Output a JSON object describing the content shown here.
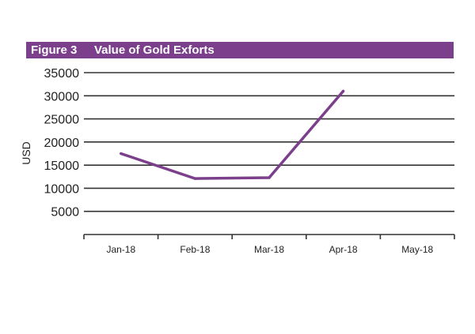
{
  "figure": {
    "number": "Figure 3",
    "title": "Value of Gold Exforts",
    "accent_color": "#7b3f8c"
  },
  "chart_data": {
    "type": "line",
    "title": "Value of Gold Exforts",
    "xlabel": "",
    "ylabel": "USD",
    "categories": [
      "Jan-18",
      "Feb-18",
      "Mar-18",
      "Apr-18",
      "May-18"
    ],
    "series": [
      {
        "values": [
          17500,
          12100,
          12300,
          31000,
          null
        ],
        "color": "#7b3f8c"
      }
    ],
    "yticks": [
      5000,
      10000,
      15000,
      20000,
      25000,
      30000,
      35000
    ],
    "ylim": [
      0,
      35000
    ],
    "grid": true,
    "legend": "none"
  }
}
